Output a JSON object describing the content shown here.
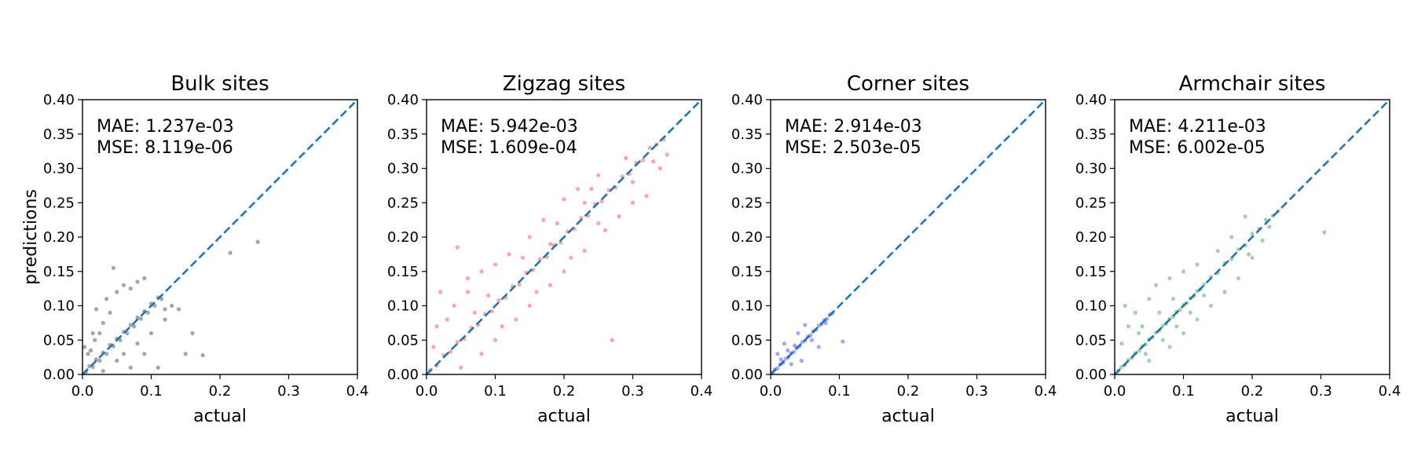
{
  "chart_data": [
    {
      "type": "scatter",
      "title": "Bulk sites",
      "xlabel": "actual",
      "ylabel": "predictions",
      "xlim": [
        0.0,
        0.4
      ],
      "ylim": [
        0.0,
        0.4
      ],
      "xticks": [
        "0.0",
        "0.1",
        "0.2",
        "0.3",
        "0.4"
      ],
      "yticks": [
        "0.00",
        "0.05",
        "0.10",
        "0.15",
        "0.20",
        "0.25",
        "0.30",
        "0.35",
        "0.40"
      ],
      "color": "#000000",
      "annotation": [
        "MAE: 1.237e-03",
        "MSE: 8.119e-06"
      ],
      "reference_line": {
        "x": [
          0.0,
          0.4
        ],
        "y": [
          0.0,
          0.4
        ],
        "style": "dashed",
        "color": "#1f77b4"
      },
      "points": [
        [
          0.005,
          0.004
        ],
        [
          0.01,
          0.012
        ],
        [
          0.015,
          0.011
        ],
        [
          0.02,
          0.022
        ],
        [
          0.025,
          0.02
        ],
        [
          0.03,
          0.032
        ],
        [
          0.035,
          0.03
        ],
        [
          0.04,
          0.043
        ],
        [
          0.045,
          0.041
        ],
        [
          0.05,
          0.052
        ],
        [
          0.055,
          0.05
        ],
        [
          0.06,
          0.062
        ],
        [
          0.065,
          0.06
        ],
        [
          0.07,
          0.072
        ],
        [
          0.075,
          0.07
        ],
        [
          0.08,
          0.083
        ],
        [
          0.085,
          0.081
        ],
        [
          0.09,
          0.092
        ],
        [
          0.095,
          0.09
        ],
        [
          0.1,
          0.103
        ],
        [
          0.105,
          0.1
        ],
        [
          0.11,
          0.112
        ],
        [
          0.115,
          0.11
        ],
        [
          0.012,
          0.035
        ],
        [
          0.018,
          0.05
        ],
        [
          0.025,
          0.06
        ],
        [
          0.03,
          0.075
        ],
        [
          0.04,
          0.09
        ],
        [
          0.02,
          0.095
        ],
        [
          0.035,
          0.11
        ],
        [
          0.05,
          0.12
        ],
        [
          0.045,
          0.155
        ],
        [
          0.06,
          0.13
        ],
        [
          0.07,
          0.125
        ],
        [
          0.09,
          0.14
        ],
        [
          0.08,
          0.135
        ],
        [
          0.03,
          0.005
        ],
        [
          0.05,
          0.02
        ],
        [
          0.06,
          0.03
        ],
        [
          0.08,
          0.045
        ],
        [
          0.1,
          0.06
        ],
        [
          0.12,
          0.08
        ],
        [
          0.13,
          0.1
        ],
        [
          0.14,
          0.095
        ],
        [
          0.16,
          0.06
        ],
        [
          0.175,
          0.028
        ],
        [
          0.15,
          0.03
        ],
        [
          0.11,
          0.01
        ],
        [
          0.215,
          0.177
        ],
        [
          0.255,
          0.193
        ],
        [
          0.008,
          0.03
        ],
        [
          0.015,
          0.06
        ],
        [
          0.003,
          0.04
        ],
        [
          0.07,
          0.01
        ],
        [
          0.09,
          0.03
        ],
        [
          0.12,
          0.095
        ]
      ]
    },
    {
      "type": "scatter",
      "title": "Zigzag sites",
      "xlabel": "actual",
      "ylabel": "",
      "xlim": [
        0.0,
        0.4
      ],
      "ylim": [
        0.0,
        0.4
      ],
      "xticks": [
        "0.0",
        "0.1",
        "0.2",
        "0.3",
        "0.4"
      ],
      "yticks": [
        "0.00",
        "0.05",
        "0.10",
        "0.15",
        "0.20",
        "0.25",
        "0.30",
        "0.35",
        "0.40"
      ],
      "color": "#ff0000",
      "annotation": [
        "MAE: 5.942e-03",
        "MSE: 1.609e-04"
      ],
      "reference_line": {
        "x": [
          0.0,
          0.4
        ],
        "y": [
          0.0,
          0.4
        ],
        "style": "dashed",
        "color": "#1f77b4"
      },
      "points": [
        [
          0.005,
          0.006
        ],
        [
          0.015,
          0.013
        ],
        [
          0.025,
          0.028
        ],
        [
          0.035,
          0.033
        ],
        [
          0.045,
          0.047
        ],
        [
          0.055,
          0.052
        ],
        [
          0.065,
          0.068
        ],
        [
          0.075,
          0.072
        ],
        [
          0.085,
          0.088
        ],
        [
          0.095,
          0.092
        ],
        [
          0.105,
          0.108
        ],
        [
          0.115,
          0.112
        ],
        [
          0.125,
          0.128
        ],
        [
          0.135,
          0.131
        ],
        [
          0.145,
          0.148
        ],
        [
          0.155,
          0.152
        ],
        [
          0.165,
          0.168
        ],
        [
          0.175,
          0.171
        ],
        [
          0.185,
          0.188
        ],
        [
          0.195,
          0.192
        ],
        [
          0.205,
          0.208
        ],
        [
          0.215,
          0.212
        ],
        [
          0.225,
          0.228
        ],
        [
          0.235,
          0.231
        ],
        [
          0.245,
          0.248
        ],
        [
          0.255,
          0.252
        ],
        [
          0.265,
          0.268
        ],
        [
          0.275,
          0.272
        ],
        [
          0.285,
          0.288
        ],
        [
          0.295,
          0.292
        ],
        [
          0.305,
          0.308
        ],
        [
          0.315,
          0.312
        ],
        [
          0.325,
          0.33
        ],
        [
          0.335,
          0.335
        ],
        [
          0.345,
          0.342
        ],
        [
          0.03,
          0.08
        ],
        [
          0.04,
          0.1
        ],
        [
          0.02,
          0.12
        ],
        [
          0.045,
          0.185
        ],
        [
          0.06,
          0.14
        ],
        [
          0.08,
          0.15
        ],
        [
          0.1,
          0.16
        ],
        [
          0.12,
          0.175
        ],
        [
          0.15,
          0.2
        ],
        [
          0.17,
          0.225
        ],
        [
          0.2,
          0.255
        ],
        [
          0.22,
          0.27
        ],
        [
          0.25,
          0.29
        ],
        [
          0.05,
          0.01
        ],
        [
          0.08,
          0.03
        ],
        [
          0.1,
          0.05
        ],
        [
          0.13,
          0.08
        ],
        [
          0.15,
          0.1
        ],
        [
          0.18,
          0.13
        ],
        [
          0.2,
          0.15
        ],
        [
          0.23,
          0.18
        ],
        [
          0.26,
          0.21
        ],
        [
          0.28,
          0.23
        ],
        [
          0.27,
          0.05
        ],
        [
          0.3,
          0.25
        ],
        [
          0.34,
          0.3
        ],
        [
          0.35,
          0.32
        ],
        [
          0.32,
          0.26
        ],
        [
          0.01,
          0.04
        ],
        [
          0.015,
          0.07
        ],
        [
          0.06,
          0.12
        ],
        [
          0.14,
          0.17
        ],
        [
          0.19,
          0.22
        ],
        [
          0.24,
          0.27
        ],
        [
          0.29,
          0.315
        ],
        [
          0.11,
          0.07
        ],
        [
          0.16,
          0.12
        ],
        [
          0.21,
          0.17
        ],
        [
          0.25,
          0.22
        ],
        [
          0.3,
          0.28
        ],
        [
          0.18,
          0.19
        ],
        [
          0.09,
          0.115
        ],
        [
          0.07,
          0.09
        ],
        [
          0.23,
          0.25
        ],
        [
          0.33,
          0.31
        ]
      ]
    },
    {
      "type": "scatter",
      "title": "Corner sites",
      "xlabel": "actual",
      "ylabel": "",
      "xlim": [
        0.0,
        0.4
      ],
      "ylim": [
        0.0,
        0.4
      ],
      "xticks": [
        "0.0",
        "0.1",
        "0.2",
        "0.3",
        "0.4"
      ],
      "yticks": [
        "0.00",
        "0.05",
        "0.10",
        "0.15",
        "0.20",
        "0.25",
        "0.30",
        "0.35",
        "0.40"
      ],
      "color": "#0000ff",
      "annotation": [
        "MAE: 2.914e-03",
        "MSE: 2.503e-05"
      ],
      "reference_line": {
        "x": [
          0.0,
          0.4
        ],
        "y": [
          0.0,
          0.4
        ],
        "style": "dashed",
        "color": "#1f77b4"
      },
      "points": [
        [
          0.003,
          0.003
        ],
        [
          0.006,
          0.007
        ],
        [
          0.01,
          0.009
        ],
        [
          0.014,
          0.015
        ],
        [
          0.018,
          0.017
        ],
        [
          0.022,
          0.023
        ],
        [
          0.026,
          0.025
        ],
        [
          0.03,
          0.031
        ],
        [
          0.034,
          0.033
        ],
        [
          0.038,
          0.039
        ],
        [
          0.042,
          0.041
        ],
        [
          0.046,
          0.047
        ],
        [
          0.05,
          0.049
        ],
        [
          0.054,
          0.055
        ],
        [
          0.058,
          0.057
        ],
        [
          0.062,
          0.063
        ],
        [
          0.066,
          0.065
        ],
        [
          0.07,
          0.071
        ],
        [
          0.074,
          0.073
        ],
        [
          0.078,
          0.079
        ],
        [
          0.082,
          0.081
        ],
        [
          0.086,
          0.087
        ],
        [
          0.09,
          0.089
        ],
        [
          0.01,
          0.03
        ],
        [
          0.02,
          0.045
        ],
        [
          0.04,
          0.06
        ],
        [
          0.05,
          0.072
        ],
        [
          0.06,
          0.05
        ],
        [
          0.03,
          0.015
        ],
        [
          0.045,
          0.02
        ],
        [
          0.07,
          0.04
        ],
        [
          0.105,
          0.048
        ],
        [
          0.08,
          0.075
        ],
        [
          0.035,
          0.042
        ],
        [
          0.025,
          0.035
        ],
        [
          0.015,
          0.022
        ]
      ]
    },
    {
      "type": "scatter",
      "title": "Armchair sites",
      "xlabel": "actual",
      "ylabel": "",
      "xlim": [
        0.0,
        0.4
      ],
      "ylim": [
        0.0,
        0.4
      ],
      "xticks": [
        "0.0",
        "0.1",
        "0.2",
        "0.3",
        "0.4"
      ],
      "yticks": [
        "0.00",
        "0.05",
        "0.10",
        "0.15",
        "0.20",
        "0.25",
        "0.30",
        "0.35",
        "0.40"
      ],
      "color": "#008000",
      "annotation": [
        "MAE: 4.211e-03",
        "MSE: 6.002e-05"
      ],
      "reference_line": {
        "x": [
          0.0,
          0.4
        ],
        "y": [
          0.0,
          0.4
        ],
        "style": "dashed",
        "color": "#1f77b4"
      },
      "points": [
        [
          0.005,
          0.005
        ],
        [
          0.01,
          0.011
        ],
        [
          0.015,
          0.014
        ],
        [
          0.02,
          0.021
        ],
        [
          0.025,
          0.024
        ],
        [
          0.03,
          0.031
        ],
        [
          0.035,
          0.034
        ],
        [
          0.04,
          0.041
        ],
        [
          0.045,
          0.044
        ],
        [
          0.05,
          0.051
        ],
        [
          0.055,
          0.054
        ],
        [
          0.06,
          0.061
        ],
        [
          0.065,
          0.064
        ],
        [
          0.07,
          0.071
        ],
        [
          0.075,
          0.074
        ],
        [
          0.08,
          0.081
        ],
        [
          0.085,
          0.084
        ],
        [
          0.09,
          0.091
        ],
        [
          0.095,
          0.094
        ],
        [
          0.1,
          0.101
        ],
        [
          0.105,
          0.104
        ],
        [
          0.11,
          0.111
        ],
        [
          0.115,
          0.114
        ],
        [
          0.12,
          0.121
        ],
        [
          0.125,
          0.124
        ],
        [
          0.13,
          0.131
        ],
        [
          0.14,
          0.142
        ],
        [
          0.15,
          0.148
        ],
        [
          0.16,
          0.162
        ],
        [
          0.17,
          0.168
        ],
        [
          0.18,
          0.182
        ],
        [
          0.19,
          0.188
        ],
        [
          0.2,
          0.205
        ],
        [
          0.21,
          0.212
        ],
        [
          0.22,
          0.225
        ],
        [
          0.23,
          0.231
        ],
        [
          0.238,
          0.238
        ],
        [
          0.02,
          0.07
        ],
        [
          0.03,
          0.09
        ],
        [
          0.05,
          0.11
        ],
        [
          0.06,
          0.13
        ],
        [
          0.08,
          0.14
        ],
        [
          0.1,
          0.15
        ],
        [
          0.12,
          0.16
        ],
        [
          0.15,
          0.18
        ],
        [
          0.17,
          0.2
        ],
        [
          0.19,
          0.23
        ],
        [
          0.05,
          0.02
        ],
        [
          0.08,
          0.04
        ],
        [
          0.1,
          0.06
        ],
        [
          0.12,
          0.08
        ],
        [
          0.14,
          0.1
        ],
        [
          0.16,
          0.12
        ],
        [
          0.18,
          0.14
        ],
        [
          0.2,
          0.17
        ],
        [
          0.215,
          0.195
        ],
        [
          0.305,
          0.207
        ],
        [
          0.01,
          0.045
        ],
        [
          0.015,
          0.1
        ],
        [
          0.04,
          0.07
        ],
        [
          0.07,
          0.05
        ],
        [
          0.09,
          0.07
        ],
        [
          0.11,
          0.09
        ],
        [
          0.13,
          0.115
        ],
        [
          0.035,
          0.06
        ],
        [
          0.045,
          0.03
        ],
        [
          0.065,
          0.09
        ],
        [
          0.085,
          0.11
        ],
        [
          0.195,
          0.175
        ],
        [
          0.225,
          0.215
        ]
      ]
    }
  ]
}
